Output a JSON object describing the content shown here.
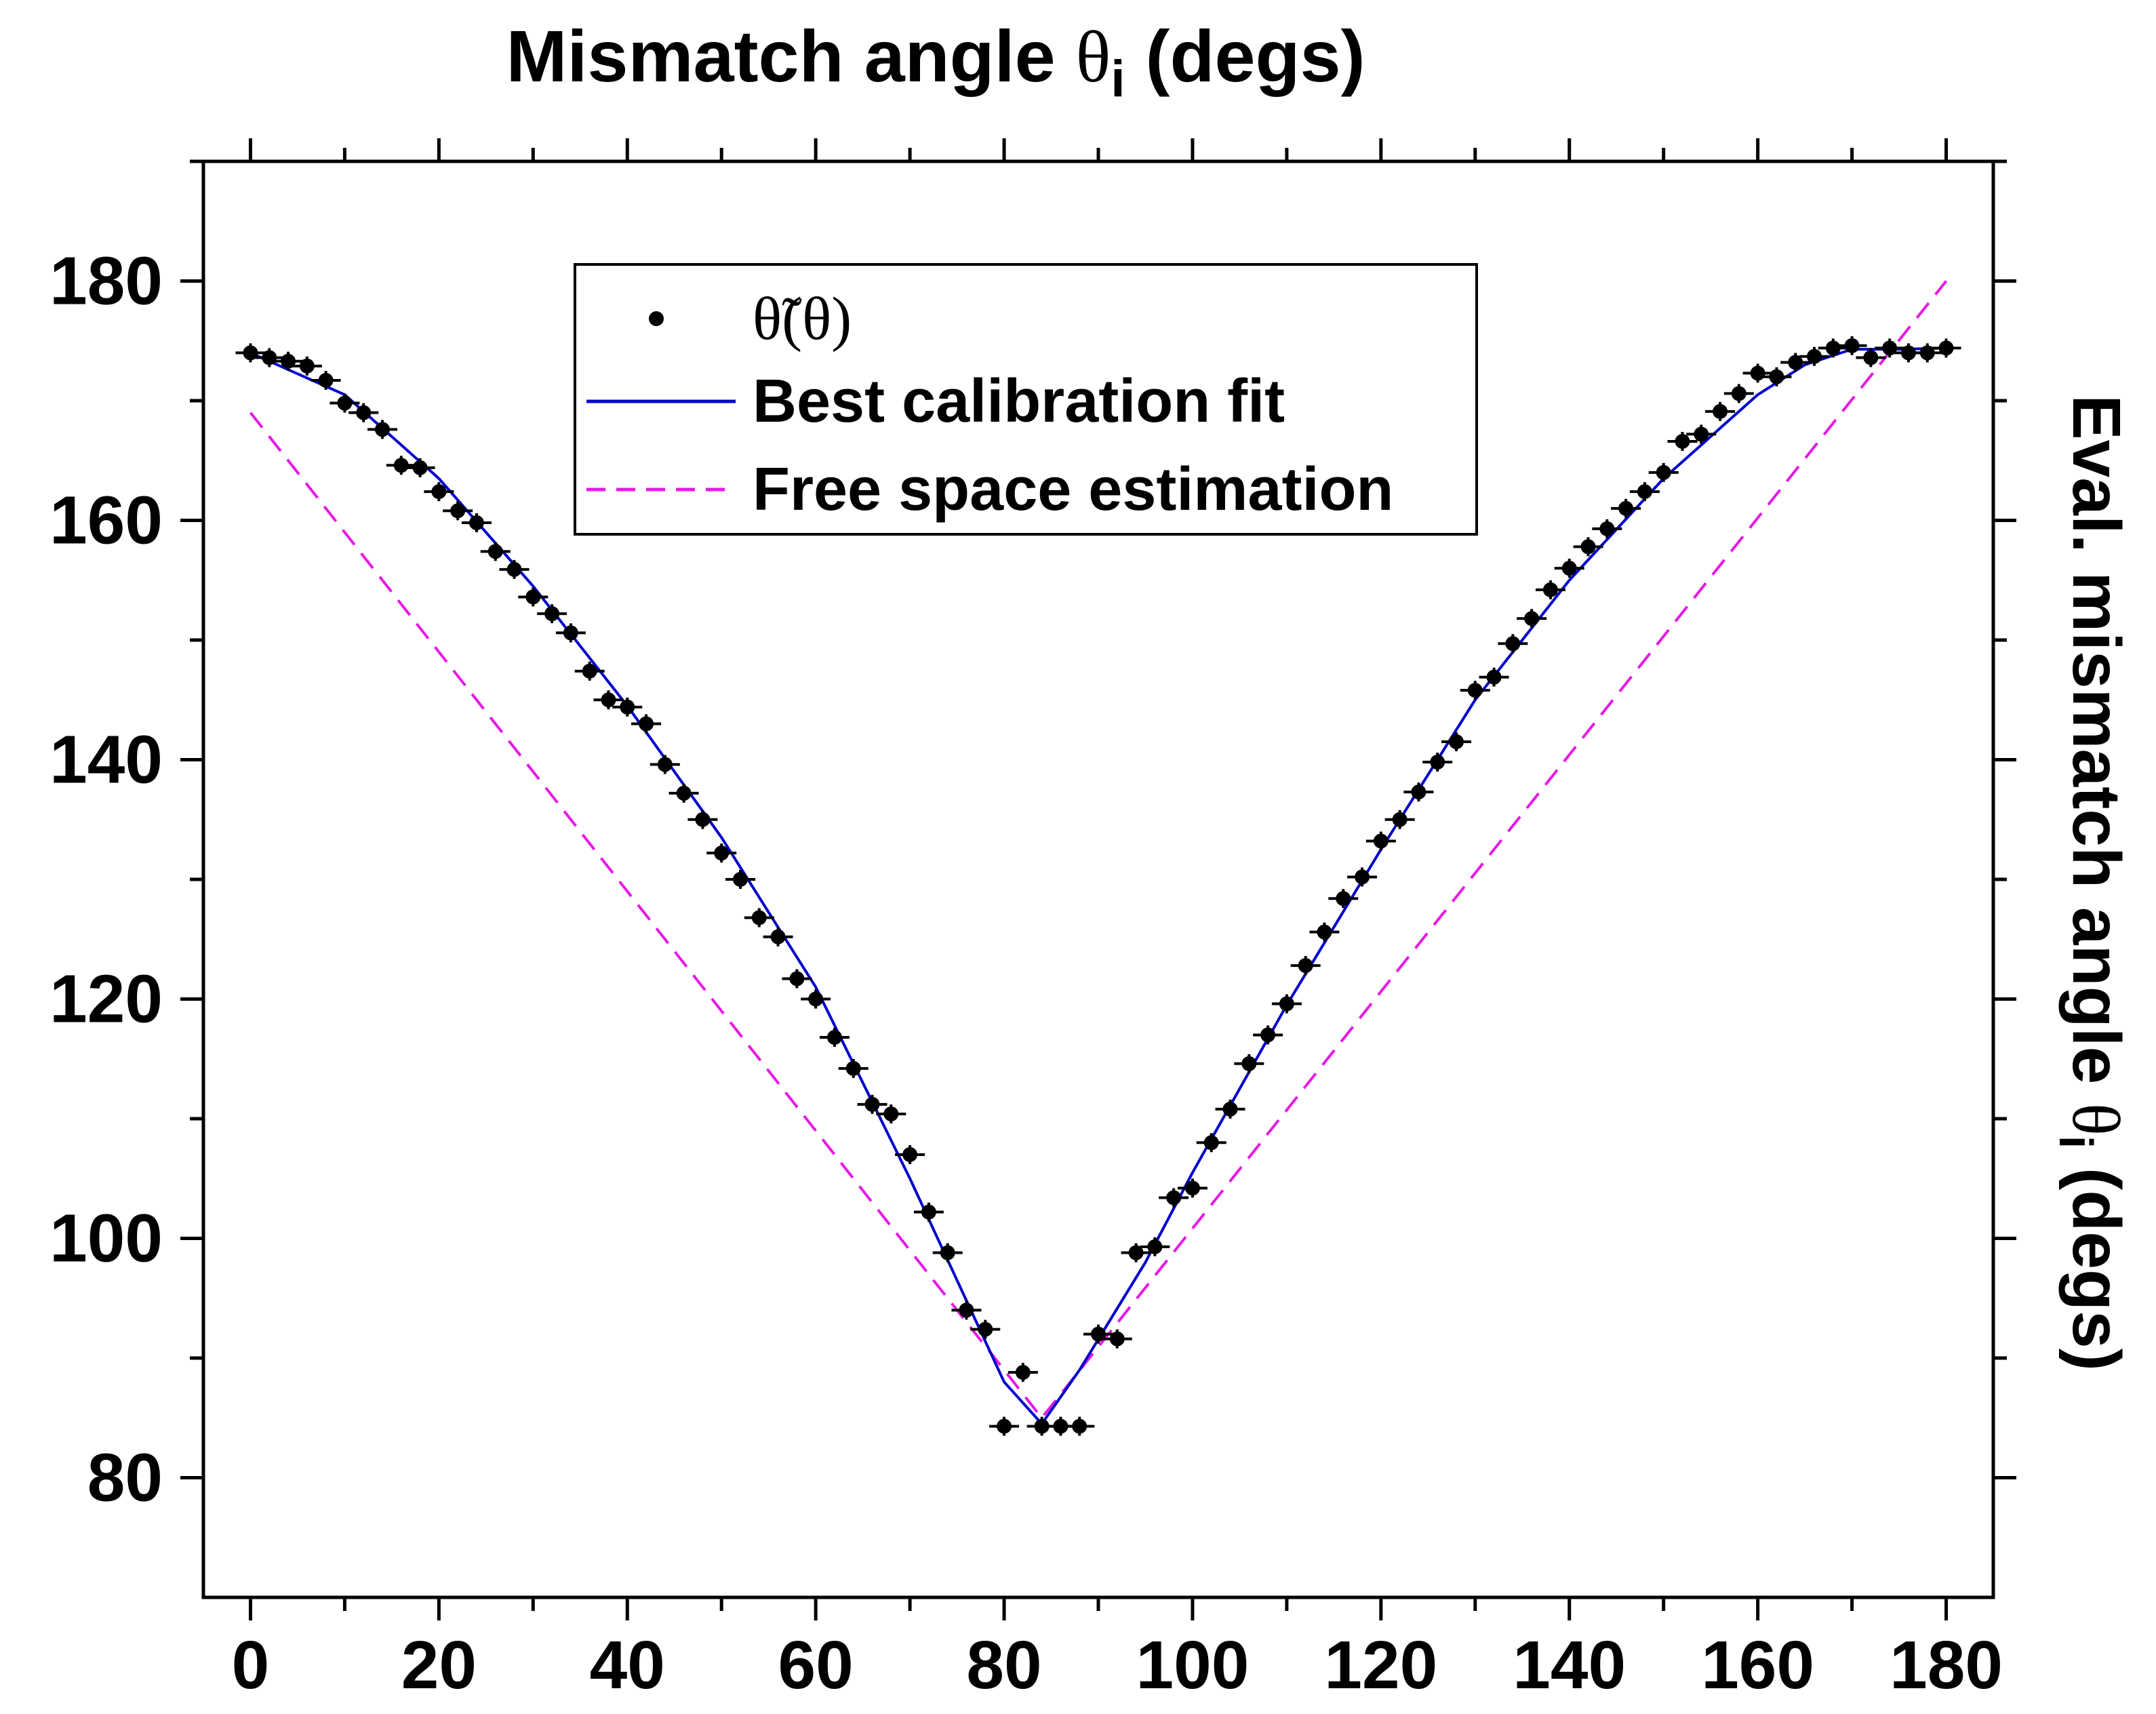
{
  "chart_data": {
    "type": "scatter",
    "title": "Mismatch angle θᵢ (degs)",
    "title_main": "Mismatch angle ",
    "title_symbol": "θ",
    "title_sub": "i",
    "title_tail": " (degs)",
    "ylabel_main": "Eval. mismatch angle  ",
    "ylabel_symbol": "θ",
    "ylabel_sub": "i",
    "ylabel_tail": "  (degs)",
    "xlabel": "",
    "xlim": [
      -5,
      185
    ],
    "ylim": [
      70,
      190
    ],
    "xticks": [
      0,
      20,
      40,
      60,
      80,
      100,
      120,
      140,
      160,
      180
    ],
    "xtick_labels": [
      "0",
      "20",
      "40",
      "60",
      "80",
      "100",
      "120",
      "140",
      "160",
      "180"
    ],
    "yticks": [
      80,
      100,
      120,
      140,
      160,
      180
    ],
    "ytick_labels": [
      "80",
      "100",
      "120",
      "140",
      "160",
      "180"
    ],
    "legend": {
      "position": "top-center",
      "entries": [
        "θ̃(θ)",
        "Best calibration fit",
        "Free space estimation"
      ]
    },
    "colors": {
      "points": "#000000",
      "fit": "#0000cc",
      "free_space": "#e619e6",
      "axes": "#000000"
    },
    "series": [
      {
        "name": "θ̃(θ)",
        "kind": "points",
        "x": [
          0,
          2,
          4,
          6,
          8,
          10,
          12,
          14,
          16,
          18,
          20,
          22,
          24,
          26,
          28,
          30,
          32,
          34,
          36,
          38,
          40,
          42,
          44,
          46,
          48,
          50,
          52,
          54,
          56,
          58,
          60,
          62,
          64,
          66,
          68,
          70,
          72,
          74,
          76,
          78,
          80,
          82,
          84,
          86,
          88,
          90,
          92,
          94,
          96,
          98,
          100,
          102,
          104,
          106,
          108,
          110,
          112,
          114,
          116,
          118,
          120,
          122,
          124,
          126,
          128,
          130,
          132,
          134,
          136,
          138,
          140,
          142,
          144,
          146,
          148,
          150,
          152,
          154,
          156,
          158,
          160,
          162,
          164,
          166,
          168,
          170,
          172,
          174,
          176,
          178,
          180
        ],
        "y": [
          174,
          173.6,
          173.3,
          172.9,
          171.7,
          169.8,
          169,
          167.6,
          164.6,
          164.4,
          162.4,
          160.8,
          159.8,
          157.4,
          155.9,
          153.6,
          152.2,
          150.6,
          147.4,
          145,
          144.4,
          143,
          139.6,
          137.2,
          135,
          132.2,
          130,
          126.8,
          125.2,
          121.7,
          120,
          116.8,
          114.2,
          111.2,
          110.4,
          107,
          102.2,
          98.8,
          94,
          92.4,
          84.3,
          88.8,
          84.3,
          84.3,
          84.3,
          92,
          91.6,
          98.8,
          99.3,
          103.4,
          104.2,
          108,
          110.8,
          114.6,
          117,
          119.6,
          122.8,
          125.6,
          128.4,
          130.2,
          133.2,
          135,
          137.3,
          139.8,
          141.5,
          145.8,
          146.9,
          149.7,
          151.8,
          154.2,
          156,
          157.8,
          159.3,
          161,
          162.4,
          164,
          166.6,
          167.2,
          169.1,
          170.6,
          172.3,
          172,
          173.2,
          173.7,
          174.4,
          174.6,
          173.6,
          174.4,
          174,
          174,
          174.4
        ]
      },
      {
        "name": "Best calibration fit",
        "kind": "line",
        "x": [
          0,
          10,
          20,
          30,
          40,
          50,
          60,
          70,
          80,
          84,
          88,
          95,
          100,
          110,
          120,
          130,
          140,
          150,
          160,
          165,
          170,
          175,
          180
        ],
        "y": [
          174,
          170.5,
          163.5,
          154.5,
          144.5,
          133.5,
          121,
          105,
          88,
          84.5,
          89,
          98,
          105.5,
          119.5,
          132.5,
          145,
          155,
          163.5,
          170.5,
          173,
          174.3,
          174.3,
          174.4
        ]
      },
      {
        "name": "Free space estimation",
        "kind": "dashed-line",
        "x": [
          0,
          84,
          180
        ],
        "y": [
          169,
          85,
          180
        ]
      }
    ]
  }
}
